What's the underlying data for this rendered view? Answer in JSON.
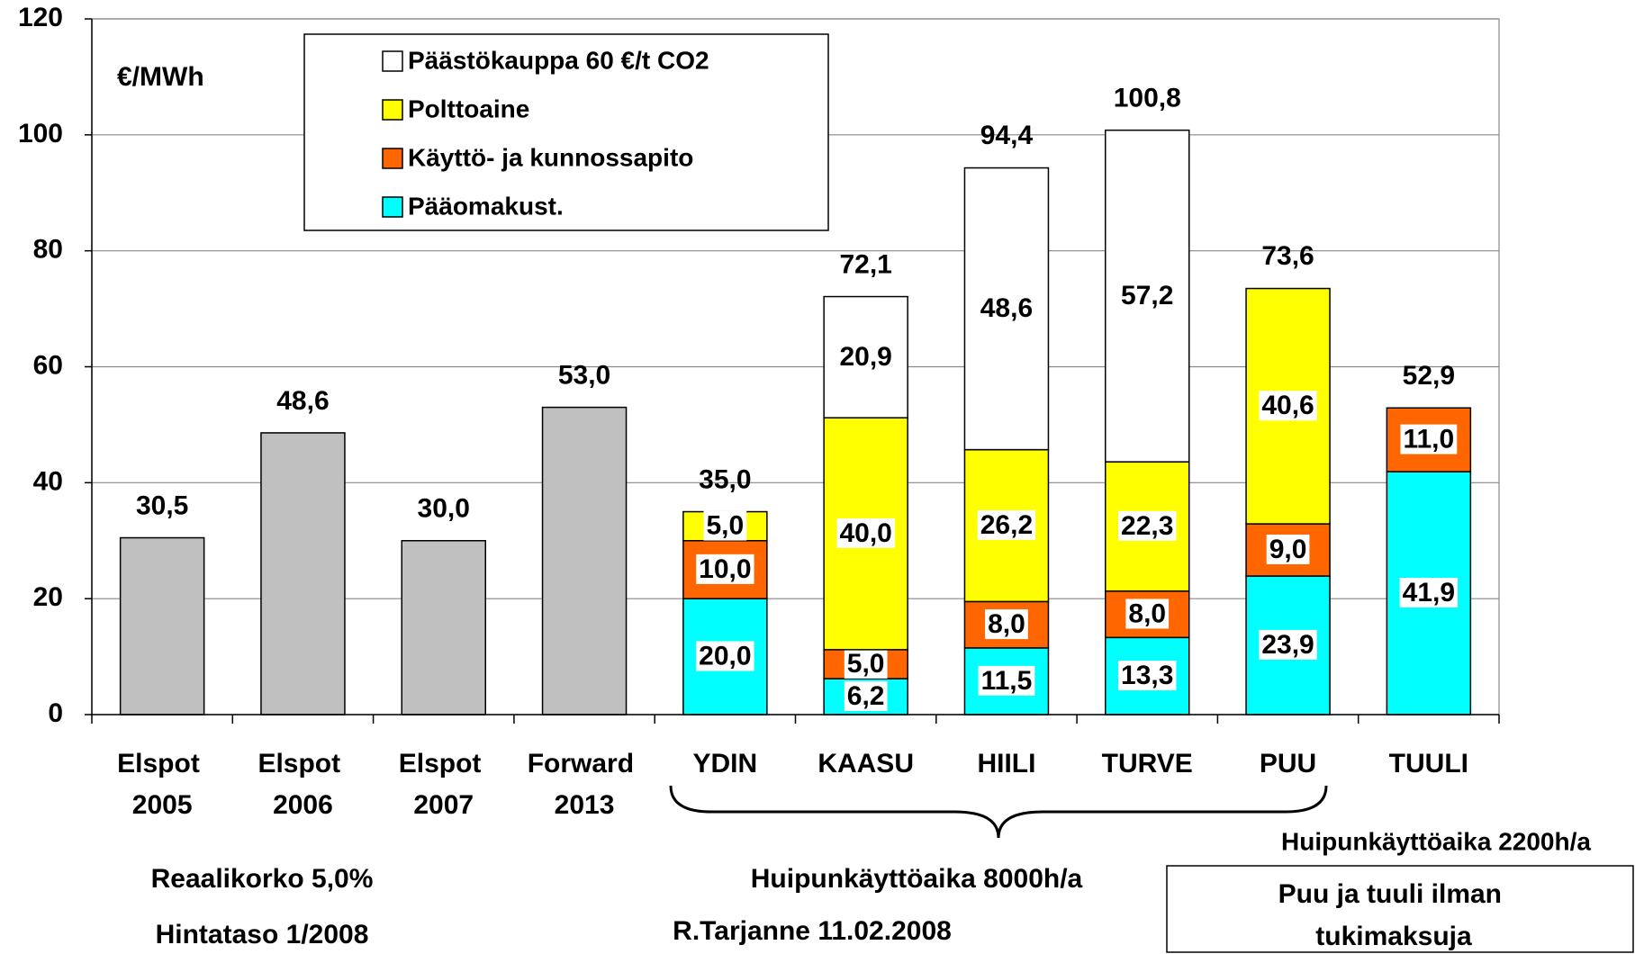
{
  "chart_data": {
    "type": "stacked_bar",
    "categories": [
      "Elspot 2005",
      "Elspot 2006",
      "Elspot 2007",
      "Forward 2013",
      "YDIN",
      "KAASU",
      "HIILI",
      "TURVE",
      "PUU",
      "TUULI"
    ],
    "series": [
      {
        "color": "#c0c0c0",
        "values": [
          30.5,
          48.6,
          30.0,
          53.0,
          null,
          null,
          null,
          null,
          null,
          null
        ]
      },
      {
        "name": "Pääomakust.",
        "color": "#00ffff",
        "values": [
          null,
          null,
          null,
          null,
          20.0,
          6.2,
          11.5,
          13.3,
          23.9,
          41.9
        ],
        "value_labels": [
          null,
          null,
          null,
          null,
          "20,0",
          "6,2",
          "11,5",
          "13,3",
          "23,9",
          "41,9"
        ]
      },
      {
        "name": "Käyttö- ja kunnossapito",
        "color": "#ff6600",
        "values": [
          null,
          null,
          null,
          null,
          10.0,
          5.0,
          8.0,
          8.0,
          9.0,
          11.0
        ],
        "value_labels": [
          null,
          null,
          null,
          null,
          "10,0",
          "5,0",
          "8,0",
          "8,0",
          "9,0",
          "11,0"
        ]
      },
      {
        "name": "Polttoaine",
        "color": "#ffff00",
        "values": [
          null,
          null,
          null,
          null,
          5.0,
          40.0,
          26.2,
          22.3,
          40.6,
          null
        ],
        "value_labels": [
          null,
          null,
          null,
          null,
          "5,0",
          "40,0",
          "26,2",
          "22,3",
          "40,6",
          null
        ]
      },
      {
        "name": "Päästökauppa 60 €/t CO2",
        "color": "#ffffff",
        "values": [
          null,
          null,
          null,
          null,
          null,
          20.9,
          48.6,
          57.2,
          null,
          null
        ],
        "value_labels": [
          null,
          null,
          null,
          null,
          null,
          "20,9",
          "48,6",
          "57,2",
          null,
          null
        ]
      }
    ],
    "totals": [
      30.5,
      48.6,
      30.0,
      53.0,
      35.0,
      72.1,
      94.4,
      100.8,
      73.6,
      52.9
    ],
    "total_labels": [
      "30,5",
      "48,6",
      "30,0",
      "53,0",
      "35,0",
      "72,1",
      "94,4",
      "100,8",
      "73,6",
      "52,9"
    ],
    "ylim": [
      0,
      120
    ],
    "yticks": [
      0,
      20,
      40,
      60,
      80,
      100,
      120
    ],
    "grid": true,
    "unit_label": "€/MWh",
    "annotations": [
      "Huipunkäyttöaika 2200h/a",
      "Reaalikorko 5,0%",
      "Huipunkäyttöaika 8000h/a",
      "Hintataso 1/2008",
      "R.Tarjanne 11.02.2008",
      "Puu ja tuuli ilman tukimaksuja"
    ]
  }
}
